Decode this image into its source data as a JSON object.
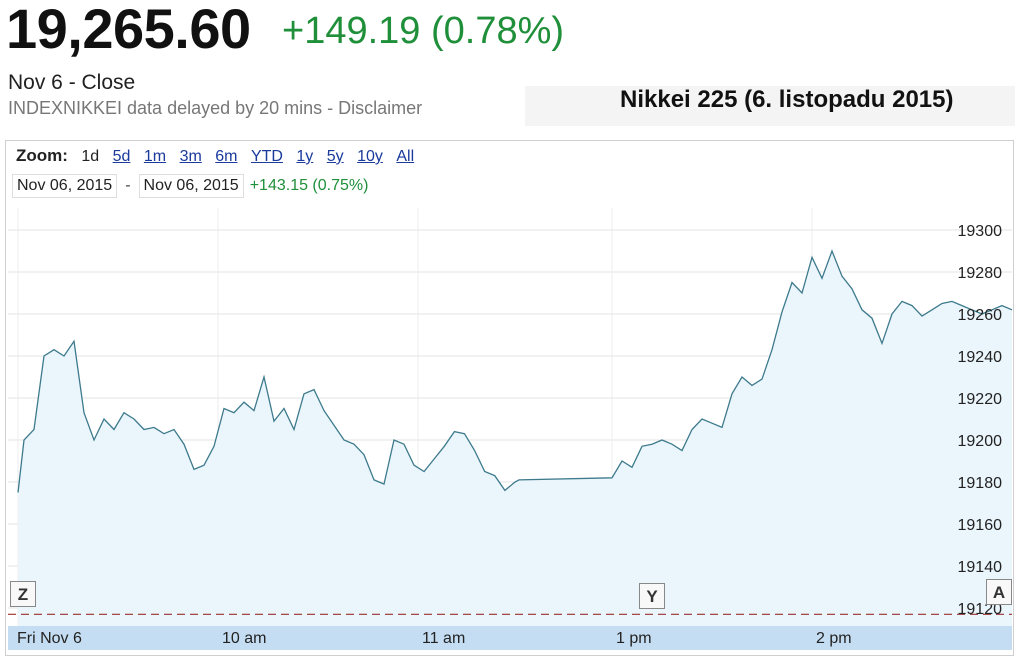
{
  "quote": {
    "price": "19,265.60",
    "change": "+149.19 (0.78%)",
    "close_label": "Nov 6 - Close",
    "delay_text": "INDEXNIKKEI data delayed by 20 mins - ",
    "disclaimer": "Disclaimer"
  },
  "caption": "Nikkei 225 (6. listopadu 2015)",
  "toolbar": {
    "zoom_label": "Zoom:",
    "zoom_options": [
      "1d",
      "5d",
      "1m",
      "3m",
      "6m",
      "YTD",
      "1y",
      "5y",
      "10y",
      "All"
    ],
    "range_start": "Nov 06, 2015",
    "range_sep": "-",
    "range_end": "Nov 06, 2015",
    "range_change": "+143.15 (0.75%)"
  },
  "markers": {
    "left": "Z",
    "mid": "Y",
    "right": "A"
  },
  "colors": {
    "line": "#3d7a8c",
    "fill": "#eaf5fc",
    "up": "#1f8f3a",
    "axis_band": "#c5ddf2"
  },
  "chart_data": {
    "type": "area",
    "title": "",
    "xlabel": "",
    "ylabel": "",
    "ylim": [
      19115,
      19310
    ],
    "yticks": [
      19120,
      19140,
      19160,
      19180,
      19200,
      19220,
      19240,
      19260,
      19280,
      19300
    ],
    "xlim": [
      9.0,
      15.0
    ],
    "xticks": [
      {
        "label": "Fri Nov 6",
        "x": 9.0
      },
      {
        "label": "10 am",
        "x": 10.0
      },
      {
        "label": "11 am",
        "x": 11.0
      },
      {
        "label": "1 pm",
        "x": 13.0
      },
      {
        "label": "2 pm",
        "x": 14.0
      }
    ],
    "grid": true,
    "reference_line": 19117,
    "x": [
      9.0,
      9.03,
      9.08,
      9.13,
      9.18,
      9.23,
      9.28,
      9.33,
      9.38,
      9.43,
      9.48,
      9.53,
      9.58,
      9.63,
      9.68,
      9.73,
      9.78,
      9.83,
      9.88,
      9.93,
      9.98,
      10.03,
      10.08,
      10.13,
      10.18,
      10.23,
      10.28,
      10.33,
      10.38,
      10.43,
      10.48,
      10.53,
      10.58,
      10.63,
      10.68,
      10.73,
      10.78,
      10.83,
      10.88,
      10.93,
      10.98,
      11.03,
      11.08,
      11.13,
      11.18,
      11.23,
      11.28,
      11.33,
      11.38,
      11.43,
      11.48,
      11.5,
      13.0,
      13.05,
      13.1,
      13.15,
      13.2,
      13.25,
      13.3,
      13.35,
      13.4,
      13.45,
      13.5,
      13.55,
      13.6,
      13.65,
      13.7,
      13.75,
      13.8,
      13.85,
      13.9,
      13.95,
      14.0,
      14.05,
      14.1,
      14.15,
      14.2,
      14.25,
      14.3,
      14.35,
      14.4,
      14.45,
      14.5,
      14.55,
      14.6,
      14.65,
      14.7,
      14.75,
      14.8,
      14.85,
      14.9,
      14.95,
      15.0
    ],
    "values": [
      19175,
      19200,
      19205,
      19240,
      19243,
      19240,
      19247,
      19213,
      19200,
      19210,
      19205,
      19213,
      19210,
      19205,
      19206,
      19203,
      19205,
      19198,
      19186,
      19188,
      19197,
      19215,
      19213,
      19218,
      19214,
      19230,
      19209,
      19215,
      19205,
      19222,
      19224,
      19214,
      19207,
      19200,
      19198,
      19193,
      19181,
      19179,
      19200,
      19198,
      19188,
      19185,
      19191,
      19197,
      19204,
      19203,
      19195,
      19185,
      19183,
      19176,
      19180,
      19181,
      19182,
      19190,
      19187,
      19197,
      19198,
      19200,
      19198,
      19195,
      19205,
      19210,
      19208,
      19206,
      19222,
      19230,
      19226,
      19229,
      19243,
      19261,
      19275,
      19270,
      19287,
      19277,
      19290,
      19278,
      19272,
      19262,
      19258,
      19246,
      19260,
      19266,
      19264,
      19259,
      19262,
      19265,
      19266,
      19264,
      19262,
      19260,
      19262,
      19264,
      19262
    ]
  }
}
